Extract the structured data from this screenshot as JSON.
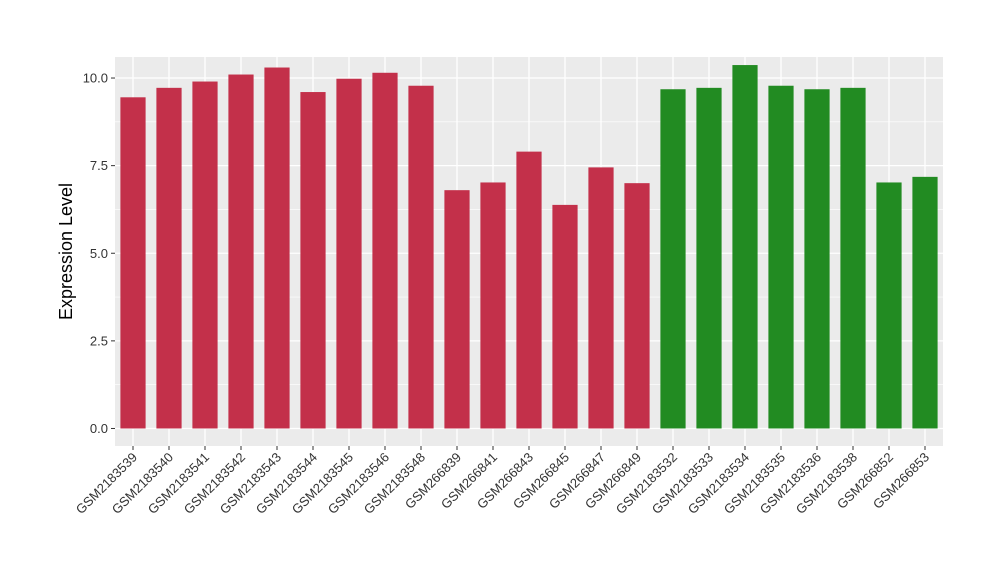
{
  "chart_data": {
    "type": "bar",
    "ylabel": "Expression Level",
    "xlabel": "",
    "ylim": [
      -0.5,
      10.6
    ],
    "yticks": [
      "0.0",
      "2.5",
      "5.0",
      "7.5",
      "10.0"
    ],
    "grid": true,
    "legend": "none",
    "colors": {
      "group1": "#c3304a",
      "group2": "#228b22",
      "panel": "#ebebeb",
      "grid": "#ffffff"
    },
    "categories": [
      "GSM2183539",
      "GSM2183540",
      "GSM2183541",
      "GSM2183542",
      "GSM2183543",
      "GSM2183544",
      "GSM2183545",
      "GSM2183546",
      "GSM2183548",
      "GSM266839",
      "GSM266841",
      "GSM266843",
      "GSM266845",
      "GSM266847",
      "GSM266849",
      "GSM2183532",
      "GSM2183533",
      "GSM2183534",
      "GSM2183535",
      "GSM2183536",
      "GSM2183538",
      "GSM266852",
      "GSM266853"
    ],
    "values": [
      9.45,
      9.72,
      9.9,
      10.1,
      10.3,
      9.6,
      9.98,
      10.15,
      9.78,
      6.8,
      7.02,
      7.9,
      6.38,
      7.45,
      7.0,
      9.68,
      9.72,
      10.37,
      9.78,
      9.68,
      9.72,
      7.02,
      7.18
    ],
    "groups": [
      1,
      1,
      1,
      1,
      1,
      1,
      1,
      1,
      1,
      1,
      1,
      1,
      1,
      1,
      1,
      2,
      2,
      2,
      2,
      2,
      2,
      2,
      2
    ]
  }
}
